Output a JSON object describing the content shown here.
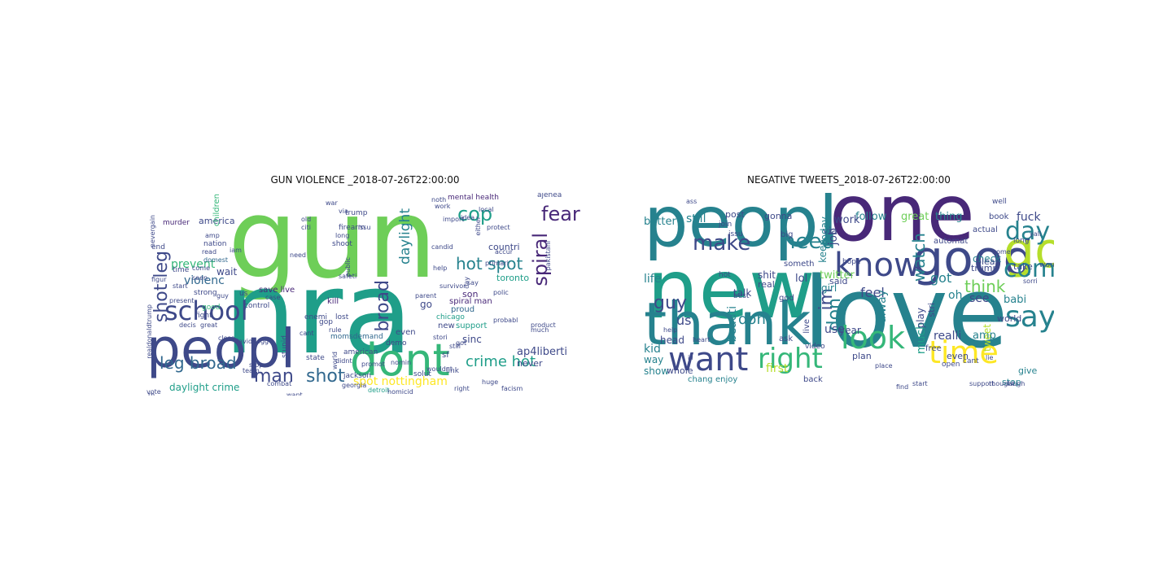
{
  "colors": {
    "v1": "#440154",
    "v2": "#482878",
    "v3": "#3e4989",
    "v4": "#31688e",
    "v5": "#26828e",
    "v6": "#1f9e89",
    "v7": "#35b779",
    "v8": "#6ece58",
    "v9": "#b5de2b",
    "v10": "#fde725"
  },
  "panels": [
    {
      "title": "GUN VIOLENCE _2018-07-26T22:00:00",
      "words": [
        {
          "text": "gun",
          "color": "v8"
        },
        {
          "text": "nra",
          "color": "v6"
        },
        {
          "text": "peopl",
          "color": "v3"
        },
        {
          "text": "dont",
          "color": "v7"
        },
        {
          "text": "school",
          "color": "v3"
        },
        {
          "text": "fear",
          "color": "v2"
        },
        {
          "text": "cop",
          "color": "v6"
        },
        {
          "text": "spiral",
          "color": "v2"
        },
        {
          "text": "shot leg",
          "color": "v3"
        },
        {
          "text": "hot spot",
          "color": "v5"
        },
        {
          "text": "broad",
          "color": "v3"
        },
        {
          "text": "daylight",
          "color": "v5"
        },
        {
          "text": "man",
          "color": "v3"
        },
        {
          "text": "shot",
          "color": "v4"
        },
        {
          "text": "leg broad",
          "color": "v4"
        },
        {
          "text": "crime hot",
          "color": "v6"
        },
        {
          "text": "spot nottingham",
          "color": "v10"
        },
        {
          "text": "prevent",
          "color": "v7"
        },
        {
          "text": "violenc",
          "color": "v4"
        },
        {
          "text": "daylight crime",
          "color": "v6"
        },
        {
          "text": "ap4liberti",
          "color": "v3"
        },
        {
          "text": "mental health",
          "color": "v2"
        },
        {
          "text": "countri",
          "color": "v3"
        },
        {
          "text": "save live",
          "color": "v2"
        },
        {
          "text": "spiral man",
          "color": "v2"
        },
        {
          "text": "toronto",
          "color": "v6"
        },
        {
          "text": "america",
          "color": "v3"
        },
        {
          "text": "murder",
          "color": "v2"
        },
        {
          "text": "nation",
          "color": "v3"
        },
        {
          "text": "domest",
          "color": "v4"
        },
        {
          "text": "children",
          "color": "v7"
        },
        {
          "text": "kill",
          "color": "v2"
        },
        {
          "text": "chicago",
          "color": "v6"
        },
        {
          "text": "son",
          "color": "v2"
        },
        {
          "text": "sinc",
          "color": "v3"
        },
        {
          "text": "go",
          "color": "v3"
        },
        {
          "text": "never",
          "color": "v3"
        },
        {
          "text": "new",
          "color": "v3"
        },
        {
          "text": "support",
          "color": "v6"
        },
        {
          "text": "proud",
          "color": "v4"
        },
        {
          "text": "even",
          "color": "v3"
        },
        {
          "text": "control",
          "color": "v3"
        },
        {
          "text": "state",
          "color": "v3"
        },
        {
          "text": "stop",
          "color": "v3"
        },
        {
          "text": "american",
          "color": "v3"
        },
        {
          "text": "momsdemand",
          "color": "v4"
        },
        {
          "text": "wait",
          "color": "v3"
        },
        {
          "text": "need",
          "color": "v3"
        },
        {
          "text": "amp",
          "color": "v3"
        },
        {
          "text": "shoot",
          "color": "v3"
        },
        {
          "text": "firearm",
          "color": "v3"
        },
        {
          "text": "protect",
          "color": "v3"
        },
        {
          "text": "local",
          "color": "v3"
        },
        {
          "text": "either",
          "color": "v3"
        },
        {
          "text": "ajenea",
          "color": "v3"
        },
        {
          "text": "strong",
          "color": "v3"
        },
        {
          "text": "good",
          "color": "v7"
        },
        {
          "text": "fight",
          "color": "v3"
        },
        {
          "text": "end",
          "color": "v3"
        },
        {
          "text": "start",
          "color": "v3"
        },
        {
          "text": "present",
          "color": "v3"
        },
        {
          "text": "time",
          "color": "v3"
        },
        {
          "text": "read",
          "color": "v3"
        },
        {
          "text": "still",
          "color": "v3"
        },
        {
          "text": "sf",
          "color": "v3"
        },
        {
          "text": "link",
          "color": "v3"
        },
        {
          "text": "right",
          "color": "v3"
        },
        {
          "text": "facism",
          "color": "v3"
        },
        {
          "text": "huge",
          "color": "v3"
        },
        {
          "text": "detroit",
          "color": "v6"
        },
        {
          "text": "homicid",
          "color": "v3"
        },
        {
          "text": "georgia",
          "color": "v3"
        },
        {
          "text": "team",
          "color": "v3"
        },
        {
          "text": "combat",
          "color": "v3"
        },
        {
          "text": "want",
          "color": "v3"
        },
        {
          "text": "vote",
          "color": "v3"
        },
        {
          "text": "realdonaldtrump",
          "color": "v3"
        },
        {
          "text": "stupid",
          "color": "v3"
        },
        {
          "text": "didnt",
          "color": "v3"
        },
        {
          "text": "promot",
          "color": "v3"
        },
        {
          "text": "parent",
          "color": "v3"
        },
        {
          "text": "day",
          "color": "v3"
        },
        {
          "text": "say",
          "color": "v3"
        },
        {
          "text": "got",
          "color": "v3"
        },
        {
          "text": "import",
          "color": "v3"
        },
        {
          "text": "wouldnt",
          "color": "v3"
        },
        {
          "text": "case",
          "color": "v3"
        },
        {
          "text": "cant",
          "color": "v3"
        },
        {
          "text": "iam",
          "color": "v3"
        },
        {
          "text": "us",
          "color": "v3"
        },
        {
          "text": "th",
          "color": "v3"
        },
        {
          "text": "seen",
          "color": "v3"
        },
        {
          "text": "come",
          "color": "v3"
        },
        {
          "text": "work",
          "color": "v3"
        },
        {
          "text": "trump",
          "color": "v3"
        },
        {
          "text": "enemi",
          "color": "v3"
        },
        {
          "text": "long",
          "color": "v3"
        },
        {
          "text": "old",
          "color": "v3"
        },
        {
          "text": "citi",
          "color": "v3"
        },
        {
          "text": "issu",
          "color": "v3"
        },
        {
          "text": "safeti",
          "color": "v3"
        },
        {
          "text": "public",
          "color": "v3"
        },
        {
          "text": "via",
          "color": "v3"
        },
        {
          "text": "war",
          "color": "v3"
        },
        {
          "text": "decis",
          "color": "v3"
        },
        {
          "text": "great",
          "color": "v3"
        },
        {
          "text": "idea",
          "color": "v3"
        },
        {
          "text": "help",
          "color": "v3"
        },
        {
          "text": "gop",
          "color": "v3"
        },
        {
          "text": "lost",
          "color": "v3"
        },
        {
          "text": "demo",
          "color": "v3"
        },
        {
          "text": "nomin",
          "color": "v3"
        },
        {
          "text": "solut",
          "color": "v3"
        },
        {
          "text": "stori",
          "color": "v3"
        },
        {
          "text": "much",
          "color": "v3"
        },
        {
          "text": "probabl",
          "color": "v3"
        },
        {
          "text": "product",
          "color": "v3"
        },
        {
          "text": "polic",
          "color": "v3"
        },
        {
          "text": "accur",
          "color": "v3"
        },
        {
          "text": "primari",
          "color": "v3"
        },
        {
          "text": "candid",
          "color": "v3"
        },
        {
          "text": "survivor",
          "color": "v3"
        },
        {
          "text": "noth",
          "color": "v3"
        },
        {
          "text": "world",
          "color": "v3"
        },
        {
          "text": "jackson",
          "color": "v3"
        },
        {
          "text": "rule",
          "color": "v3"
        },
        {
          "text": "figur",
          "color": "v3"
        },
        {
          "text": "guy",
          "color": "v3"
        },
        {
          "text": "close",
          "color": "v3"
        },
        {
          "text": "davidhogg",
          "color": "v3"
        },
        {
          "text": "nevergain",
          "color": "v3"
        },
        {
          "text": "pakistani",
          "color": "v3"
        }
      ]
    },
    {
      "title": "NEGATIVE TWEETS_2018-07-26T22:00:00",
      "words": [
        {
          "text": "love",
          "color": "v5"
        },
        {
          "text": "one",
          "color": "v2"
        },
        {
          "text": "new",
          "color": "v6"
        },
        {
          "text": "peopl",
          "color": "v5"
        },
        {
          "text": "thank",
          "color": "v5"
        },
        {
          "text": "good",
          "color": "v3"
        },
        {
          "text": "go",
          "color": "v9"
        },
        {
          "text": "know",
          "color": "v3"
        },
        {
          "text": "look",
          "color": "v7"
        },
        {
          "text": "want",
          "color": "v3"
        },
        {
          "text": "time",
          "color": "v10"
        },
        {
          "text": "say",
          "color": "v5"
        },
        {
          "text": "come",
          "color": "v5"
        },
        {
          "text": "day",
          "color": "v5"
        },
        {
          "text": "need",
          "color": "v5"
        },
        {
          "text": "make",
          "color": "v3"
        },
        {
          "text": "right",
          "color": "v7"
        },
        {
          "text": "guy",
          "color": "v3"
        },
        {
          "text": "dont",
          "color": "v5"
        },
        {
          "text": "im",
          "color": "v3"
        },
        {
          "text": "watch",
          "color": "v5"
        },
        {
          "text": "got",
          "color": "v5"
        },
        {
          "text": "think",
          "color": "v8"
        },
        {
          "text": "feel",
          "color": "v3"
        },
        {
          "text": "see",
          "color": "v3"
        },
        {
          "text": "realli",
          "color": "v3"
        },
        {
          "text": "much",
          "color": "v6"
        },
        {
          "text": "alway",
          "color": "v5"
        },
        {
          "text": "don",
          "color": "v5"
        },
        {
          "text": "fuck",
          "color": "v3"
        },
        {
          "text": "follow",
          "color": "v5"
        },
        {
          "text": "great",
          "color": "v8"
        },
        {
          "text": "thing",
          "color": "v5"
        },
        {
          "text": "check",
          "color": "v5"
        },
        {
          "text": "trump",
          "color": "v3"
        },
        {
          "text": "take",
          "color": "v3"
        },
        {
          "text": "amp",
          "color": "v5"
        },
        {
          "text": "even",
          "color": "v3"
        },
        {
          "text": "give",
          "color": "v5"
        },
        {
          "text": "stop",
          "color": "v5"
        },
        {
          "text": "still",
          "color": "v5"
        },
        {
          "text": "better",
          "color": "v5"
        },
        {
          "text": "work",
          "color": "v3"
        },
        {
          "text": "via",
          "color": "v3"
        },
        {
          "text": "today",
          "color": "v5"
        },
        {
          "text": "keep",
          "color": "v5"
        },
        {
          "text": "shit",
          "color": "v3"
        },
        {
          "text": "real",
          "color": "v3"
        },
        {
          "text": "life",
          "color": "v5"
        },
        {
          "text": "us",
          "color": "v3"
        },
        {
          "text": "kid",
          "color": "v5"
        },
        {
          "text": "way",
          "color": "v5"
        },
        {
          "text": "show",
          "color": "v5"
        },
        {
          "text": "whole",
          "color": "v3"
        },
        {
          "text": "chang",
          "color": "v5"
        },
        {
          "text": "enjoy",
          "color": "v5"
        },
        {
          "text": "first",
          "color": "v9"
        },
        {
          "text": "back",
          "color": "v3"
        },
        {
          "text": "talk",
          "color": "v3"
        },
        {
          "text": "lol",
          "color": "v3"
        },
        {
          "text": "twitter",
          "color": "v8"
        },
        {
          "text": "said",
          "color": "v3"
        },
        {
          "text": "year",
          "color": "v3"
        },
        {
          "text": "use",
          "color": "v3"
        },
        {
          "text": "plan",
          "color": "v3"
        },
        {
          "text": "head",
          "color": "v3"
        },
        {
          "text": "beauti",
          "color": "v5"
        },
        {
          "text": "girl",
          "color": "v5"
        },
        {
          "text": "job",
          "color": "v3"
        },
        {
          "text": "oh",
          "color": "v5"
        },
        {
          "text": "play",
          "color": "v3"
        },
        {
          "text": "tweet",
          "color": "v9"
        },
        {
          "text": "babi",
          "color": "v5"
        },
        {
          "text": "world",
          "color": "v3"
        },
        {
          "text": "pleas",
          "color": "v3"
        },
        {
          "text": "actual",
          "color": "v3"
        },
        {
          "text": "book",
          "color": "v3"
        },
        {
          "text": "gonna",
          "color": "v3"
        },
        {
          "text": "post",
          "color": "v3"
        },
        {
          "text": "big",
          "color": "v3"
        },
        {
          "text": "someth",
          "color": "v3"
        },
        {
          "text": "automat",
          "color": "v3"
        },
        {
          "text": "god",
          "color": "v3"
        },
        {
          "text": "ask",
          "color": "v3"
        },
        {
          "text": "free",
          "color": "v3"
        },
        {
          "text": "open",
          "color": "v3"
        },
        {
          "text": "cant",
          "color": "v3"
        },
        {
          "text": "live",
          "color": "v3"
        },
        {
          "text": "hot",
          "color": "v3"
        },
        {
          "text": "join",
          "color": "v3"
        },
        {
          "text": "issu",
          "color": "v3"
        },
        {
          "text": "best",
          "color": "v3"
        },
        {
          "text": "video",
          "color": "v3"
        },
        {
          "text": "word",
          "color": "v3"
        },
        {
          "text": "hope",
          "color": "v3"
        },
        {
          "text": "long",
          "color": "v3"
        },
        {
          "text": "stri",
          "color": "v3"
        },
        {
          "text": "thought",
          "color": "v3"
        },
        {
          "text": "start",
          "color": "v3"
        },
        {
          "text": "support",
          "color": "v3"
        },
        {
          "text": "laugh",
          "color": "v3"
        },
        {
          "text": "place",
          "color": "v3"
        },
        {
          "text": "home",
          "color": "v3"
        },
        {
          "text": "help",
          "color": "v3"
        },
        {
          "text": "heart",
          "color": "v3"
        },
        {
          "text": "ill",
          "color": "v3"
        },
        {
          "text": "well",
          "color": "v3"
        },
        {
          "text": "sorri",
          "color": "v3"
        },
        {
          "text": "lie",
          "color": "v3"
        },
        {
          "text": "find",
          "color": "v3"
        },
        {
          "text": "ass",
          "color": "v3"
        },
        {
          "text": "yall",
          "color": "v3"
        }
      ]
    }
  ]
}
